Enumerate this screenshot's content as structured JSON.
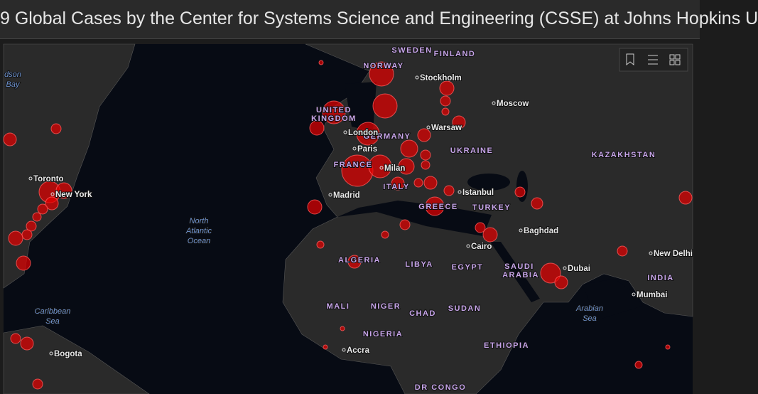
{
  "header": {
    "title": "9 Global Cases by the Center for Systems Science and Engineering (CSSE) at Johns Hopkins U"
  },
  "map": {
    "countries": [
      "SWEDEN",
      "FINLAND",
      "NORWAY",
      "UNITED",
      "KINGDOM",
      "GERMANY",
      "FRANCE",
      "UKRAINE",
      "KAZAKHSTAN",
      "ITALY",
      "GREECE",
      "TURKEY",
      "ALGERIA",
      "LIBYA",
      "EGYPT",
      "SAUDI",
      "ARABIA",
      "INDIA",
      "MALI",
      "NIGER",
      "CHAD",
      "SUDAN",
      "NIGERIA",
      "ETHIOPIA",
      "DR CONGO"
    ],
    "cities": [
      "Stockholm",
      "Moscow",
      "London",
      "Warsaw",
      "Paris",
      "Milan",
      "Toronto",
      "New York",
      "Madrid",
      "Istanbul",
      "Baghdad",
      "Cairo",
      "Dubai",
      "New Delhi",
      "Mumbai",
      "Accra",
      "Bogota"
    ],
    "water": [
      [
        "dson",
        "Bay"
      ],
      [
        "North",
        "Atlantic",
        "Ocean"
      ],
      [
        "Caribbean",
        "Sea"
      ],
      [
        "Arabian",
        "Sea"
      ]
    ]
  }
}
